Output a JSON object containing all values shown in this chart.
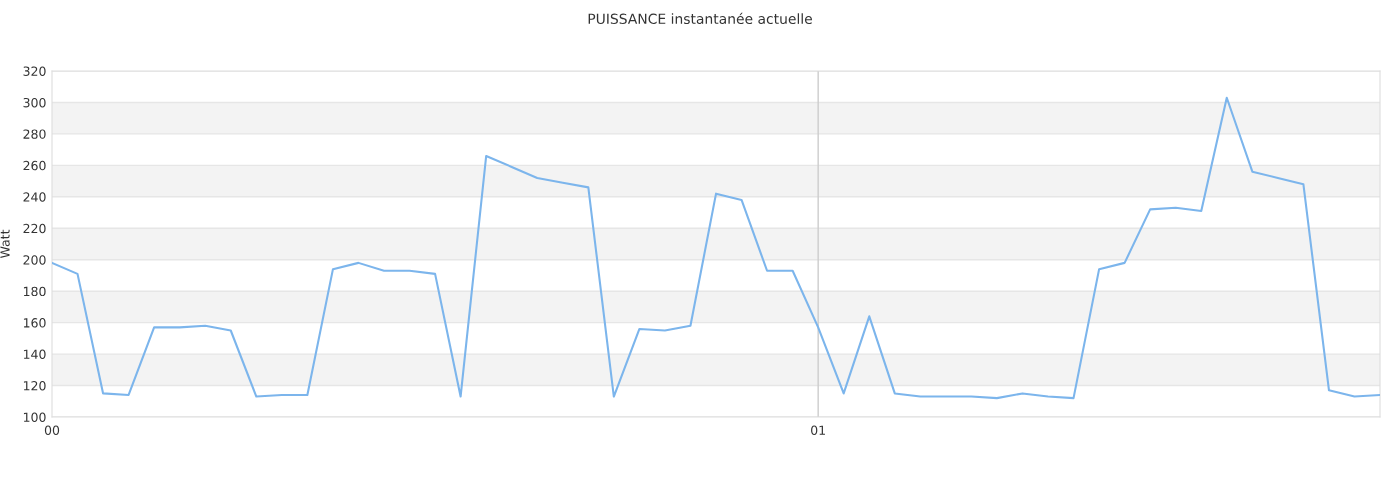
{
  "chart_data": {
    "type": "line",
    "title": "PUISSANCE instantanée actuelle",
    "ylabel": "Watt",
    "x": [
      0,
      0.0333,
      0.0667,
      0.1,
      0.1333,
      0.1667,
      0.2,
      0.2333,
      0.2667,
      0.3,
      0.3333,
      0.3667,
      0.4,
      0.4333,
      0.4667,
      0.5,
      0.5333,
      0.5667,
      0.6,
      0.6333,
      0.6667,
      0.7,
      0.7333,
      0.7667,
      0.8,
      0.8333,
      0.8667,
      0.9,
      0.9333,
      0.9667,
      1,
      1.0333,
      1.0667,
      1.1,
      1.1333,
      1.1667,
      1.2,
      1.2333,
      1.2667,
      1.3,
      1.3333,
      1.3667,
      1.4,
      1.4333,
      1.4667,
      1.5,
      1.5333,
      1.5667,
      1.6,
      1.6333,
      1.6667,
      1.7,
      1.7333
    ],
    "series": [
      {
        "color": "#7cb5ec",
        "values": [
          198,
          191,
          115,
          114,
          157,
          157,
          158,
          155,
          113,
          114,
          114,
          194,
          198,
          193,
          193,
          191,
          113,
          266,
          259,
          252,
          249,
          246,
          113,
          156,
          155,
          158,
          242,
          238,
          193,
          193,
          157,
          115,
          164,
          115,
          113,
          113,
          113,
          112,
          115,
          113,
          112,
          194,
          198,
          232,
          233,
          231,
          303,
          256,
          252,
          248,
          117,
          113,
          114
        ]
      }
    ],
    "xlim": [
      0,
      1.7333
    ],
    "xticks": [
      {
        "value": 0,
        "label": "00"
      },
      {
        "value": 1,
        "label": "01"
      }
    ],
    "ylim": [
      100,
      320
    ],
    "yticks": [
      100,
      120,
      140,
      160,
      180,
      200,
      220,
      240,
      260,
      280,
      300,
      320
    ],
    "bands": [
      {
        "axis": "y",
        "from": 120,
        "to": 140,
        "color": "#f3f3f3"
      },
      {
        "axis": "y",
        "from": 160,
        "to": 180,
        "color": "#f3f3f3"
      },
      {
        "axis": "y",
        "from": 200,
        "to": 220,
        "color": "#f3f3f3"
      },
      {
        "axis": "y",
        "from": 240,
        "to": 260,
        "color": "#f3f3f3"
      },
      {
        "axis": "y",
        "from": 280,
        "to": 300,
        "color": "#f3f3f3"
      }
    ],
    "ref_lines": [
      {
        "axis": "x",
        "value": 1,
        "color": "#cccccc"
      }
    ],
    "grid": "y",
    "marker": "none",
    "line_style": "solid"
  }
}
